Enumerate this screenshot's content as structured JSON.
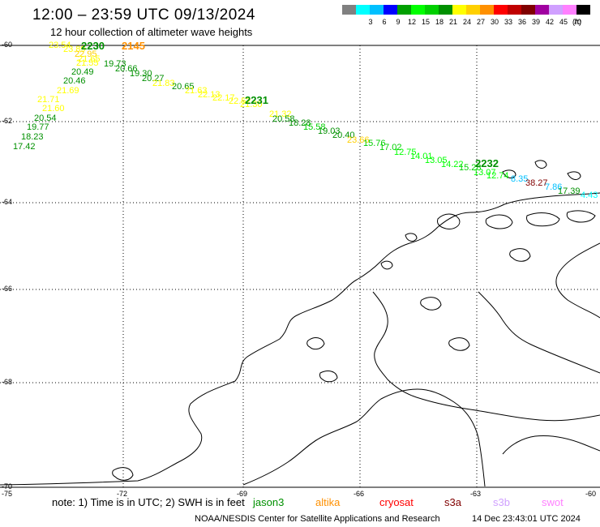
{
  "header": {
    "title": "12:00 – 23:59 UTC 09/13/2024",
    "subtitle": "12 hour collection of altimeter wave heights"
  },
  "legend": {
    "unit": "(ft)",
    "bins": [
      {
        "color": "#808080",
        "label": ""
      },
      {
        "color": "#00ffff",
        "label": "3"
      },
      {
        "color": "#00c0ff",
        "label": "6"
      },
      {
        "color": "#0000ff",
        "label": "9"
      },
      {
        "color": "#00a000",
        "label": "12"
      },
      {
        "color": "#00ff00",
        "label": "15"
      },
      {
        "color": "#00d000",
        "label": "18"
      },
      {
        "color": "#009000",
        "label": "21"
      },
      {
        "color": "#ffff00",
        "label": "24"
      },
      {
        "color": "#ffd000",
        "label": "27"
      },
      {
        "color": "#ff9000",
        "label": "30"
      },
      {
        "color": "#ff0000",
        "label": "33"
      },
      {
        "color": "#c00000",
        "label": "36"
      },
      {
        "color": "#800000",
        "label": "39"
      },
      {
        "color": "#a000a0",
        "label": "42"
      },
      {
        "color": "#d0a0ff",
        "label": "45"
      },
      {
        "color": "#ff80ff",
        "label": "70"
      },
      {
        "color": "#000000",
        "label": ""
      }
    ]
  },
  "axes": {
    "lat_labels": [
      "-60",
      "-62",
      "-64",
      "-66",
      "-68",
      "-70"
    ],
    "lon_labels": [
      "-75",
      "-72",
      "-69",
      "-66",
      "-63",
      "-60"
    ]
  },
  "track_labels": [
    {
      "text": "2230",
      "color": "#009000"
    },
    {
      "text": "2145",
      "color": "#ff9000"
    },
    {
      "text": "2231",
      "color": "#009000"
    },
    {
      "text": "2232",
      "color": "#009000"
    }
  ],
  "readings": [
    {
      "v": "23.54",
      "c": "#ffff00"
    },
    {
      "v": "23.89",
      "c": "#ffff00"
    },
    {
      "v": "22.95",
      "c": "#ffd000"
    },
    {
      "v": "21.65",
      "c": "#ffff00"
    },
    {
      "v": "21.55",
      "c": "#ffff00"
    },
    {
      "v": "19.73",
      "c": "#009000"
    },
    {
      "v": "20.49",
      "c": "#009000"
    },
    {
      "v": "20.66",
      "c": "#009000"
    },
    {
      "v": "19.30",
      "c": "#009000"
    },
    {
      "v": "20.46",
      "c": "#009000"
    },
    {
      "v": "20.27",
      "c": "#009000"
    },
    {
      "v": "21.83",
      "c": "#ffff00"
    },
    {
      "v": "20.65",
      "c": "#009000"
    },
    {
      "v": "21.63",
      "c": "#ffff00"
    },
    {
      "v": "22.13",
      "c": "#ffff00"
    },
    {
      "v": "22.17",
      "c": "#ffff00"
    },
    {
      "v": "22.52",
      "c": "#ffff00"
    },
    {
      "v": "21.60",
      "c": "#ffff00"
    },
    {
      "v": "21.71",
      "c": "#ffff00"
    },
    {
      "v": "20.54",
      "c": "#009000"
    },
    {
      "v": "19.77",
      "c": "#009000"
    },
    {
      "v": "18.23",
      "c": "#009000"
    },
    {
      "v": "17.42",
      "c": "#009000"
    },
    {
      "v": "21.69",
      "c": "#ffff00"
    },
    {
      "v": "21.30",
      "c": "#ffff00"
    },
    {
      "v": "21.32",
      "c": "#ffff00"
    },
    {
      "v": "20.58",
      "c": "#009000"
    },
    {
      "v": "18.28",
      "c": "#009000"
    },
    {
      "v": "15.58",
      "c": "#00d000"
    },
    {
      "v": "19.03",
      "c": "#009000"
    },
    {
      "v": "20.40",
      "c": "#009000"
    },
    {
      "v": "23.66",
      "c": "#ffd000"
    },
    {
      "v": "15.76",
      "c": "#00d000"
    },
    {
      "v": "17.02",
      "c": "#00d000"
    },
    {
      "v": "12.75",
      "c": "#00ff00"
    },
    {
      "v": "14.01",
      "c": "#00ff00"
    },
    {
      "v": "13.05",
      "c": "#00ff00"
    },
    {
      "v": "14.22",
      "c": "#00ff00"
    },
    {
      "v": "15.28",
      "c": "#00d000"
    },
    {
      "v": "13.07",
      "c": "#00ff00"
    },
    {
      "v": "12.74",
      "c": "#00ff00"
    },
    {
      "v": "8.35",
      "c": "#00c0ff"
    },
    {
      "v": "38.27",
      "c": "#800000"
    },
    {
      "v": "7.86",
      "c": "#00c0ff"
    },
    {
      "v": "17.39",
      "c": "#009000"
    },
    {
      "v": "4.43",
      "c": "#00ffff"
    }
  ],
  "note": {
    "text": "note: 1) Time is in UTC; 2) SWH is in feet",
    "missions": [
      {
        "name": "jason3",
        "color": "#009000"
      },
      {
        "name": "altika",
        "color": "#ff9000"
      },
      {
        "name": "cryosat",
        "color": "#ff0000"
      },
      {
        "name": "s3a",
        "color": "#800000"
      },
      {
        "name": "s3b",
        "color": "#d0a0ff"
      },
      {
        "name": "swot",
        "color": "#ff80ff"
      }
    ]
  },
  "footer": {
    "credit": "NOAA/NESDIS Center for Satellite Applications and Research",
    "date_generated": "14 Dec 23:43:01 UTC 2024"
  }
}
